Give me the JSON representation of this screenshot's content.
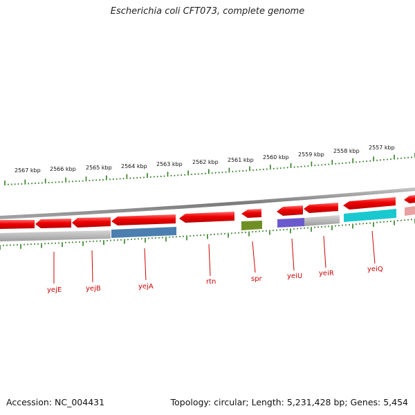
{
  "title": "Escherichia coli CFT073, complete genome",
  "footer": {
    "accession": "Accession: NC_004431",
    "stats": "Topology: circular; Length: 5,231,428 bp; Genes: 5,454"
  },
  "colors": {
    "tick": "#2e7d1f",
    "gene_forward": "#e80000",
    "gene_label": "#cc0000",
    "backbone": "#8c8c8c",
    "track_gray": "#b8b8b8"
  },
  "scale_labels": [
    "2567 kbp",
    "2566 kbp",
    "2565 kbp",
    "2564 kbp",
    "2563 kbp",
    "2562 kbp",
    "2561 kbp",
    "2560 kbp",
    "2559 kbp",
    "2558 kbp",
    "2557 kbp"
  ],
  "genes": [
    {
      "name": "yejE",
      "color": "#a0a0a0"
    },
    {
      "name": "yejB",
      "color": "#a0a0a0"
    },
    {
      "name": "yejA",
      "color": "#4a7fb0"
    },
    {
      "name": "rtn",
      "color": "#a0a0a0"
    },
    {
      "name": "spr",
      "color": "#6f8f25"
    },
    {
      "name": "yeiU",
      "color": "#6a5acd"
    },
    {
      "name": "yeiR",
      "color": "#a0a0a0"
    },
    {
      "name": "yeiQ",
      "color": "#19c9cf"
    }
  ]
}
